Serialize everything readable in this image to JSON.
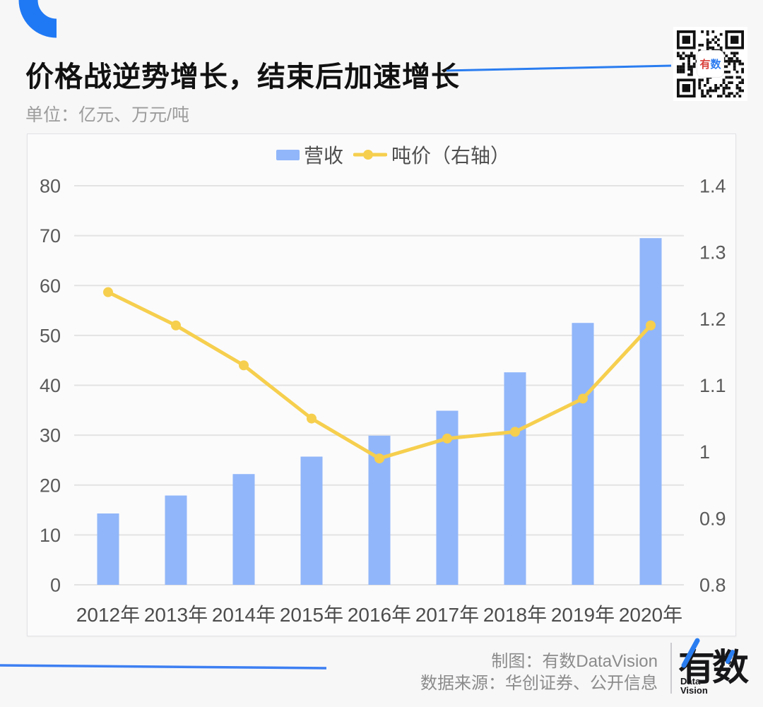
{
  "header": {
    "title": "价格战逆势增长，结束后加速增长",
    "subtitle": "单位：亿元、万元/吨"
  },
  "qr": {
    "center_text_1": "有",
    "center_text_2": "数"
  },
  "chart_data": {
    "type": "bar+line",
    "categories": [
      "2012年",
      "2013年",
      "2014年",
      "2015年",
      "2016年",
      "2017年",
      "2018年",
      "2019年",
      "2020年"
    ],
    "series": [
      {
        "name": "营收",
        "type": "bar",
        "axis": "left",
        "color": "#91b6f9",
        "values": [
          14.3,
          17.9,
          22.2,
          25.7,
          29.9,
          34.9,
          42.6,
          52.5,
          69.5
        ]
      },
      {
        "name": "吨价（右轴）",
        "type": "line",
        "axis": "right",
        "color": "#f6cf4e",
        "values": [
          1.24,
          1.19,
          1.13,
          1.05,
          0.99,
          1.02,
          1.03,
          1.08,
          1.19
        ]
      }
    ],
    "left_axis": {
      "min": 0,
      "max": 80,
      "ticks": [
        80,
        70,
        60,
        50,
        40,
        30,
        20,
        10,
        0
      ]
    },
    "right_axis": {
      "min": 0.8,
      "max": 1.4,
      "ticks": [
        "1.4",
        "1.3",
        "1.2",
        "1.1",
        "1",
        "0.9",
        "0.8"
      ]
    },
    "grid": true,
    "legend_position": "top-center",
    "grid_color": "#e3e3e4"
  },
  "footer": {
    "credit": "制图：有数DataVision",
    "source": "数据来源：华创证券、公开信息",
    "logo": {
      "main": "有数",
      "sub_line1": "Data",
      "sub_line2": "Vision"
    }
  }
}
